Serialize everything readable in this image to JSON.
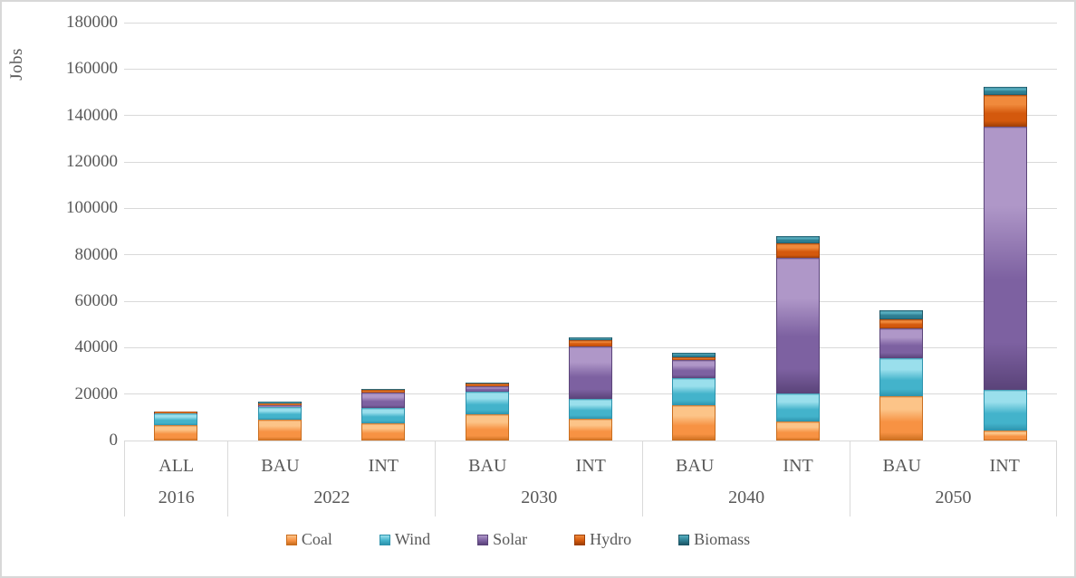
{
  "chart_data": {
    "type": "bar",
    "stacked": true,
    "ylabel": "Jobs",
    "ylim": [
      0,
      180000
    ],
    "ytick_step": 20000,
    "grid": true,
    "legend_position": "bottom",
    "axis_color": "#d9d9d9",
    "text_color": "#595959",
    "categories": [
      "ALL",
      "BAU",
      "INT",
      "BAU",
      "INT",
      "BAU",
      "INT",
      "BAU",
      "INT"
    ],
    "groups": [
      {
        "label": "2016",
        "span": 1
      },
      {
        "label": "2022",
        "span": 2
      },
      {
        "label": "2030",
        "span": 2
      },
      {
        "label": "2040",
        "span": 2
      },
      {
        "label": "2050",
        "span": 2
      }
    ],
    "series": [
      {
        "name": "Coal",
        "color": "#F79243",
        "color_light": "#FCC488",
        "color_dark": "#C96D1E",
        "values": [
          6800,
          8900,
          7400,
          11400,
          9300,
          15200,
          8300,
          19100,
          4200
        ]
      },
      {
        "name": "Wind",
        "color": "#43B3CB",
        "color_light": "#9ADFEC",
        "color_dark": "#2D93AD",
        "values": [
          4800,
          5600,
          6500,
          9700,
          8800,
          11700,
          12100,
          16200,
          17700
        ]
      },
      {
        "name": "Solar",
        "color": "#7D61A1",
        "color_light": "#AF97C8",
        "color_dark": "#5A4379",
        "values": [
          100,
          800,
          6800,
          2300,
          22500,
          7800,
          58300,
          13000,
          113200
        ]
      },
      {
        "name": "Hydro",
        "color": "#D4590D",
        "color_light": "#F08A3C",
        "color_dark": "#9E3F06",
        "values": [
          600,
          800,
          1000,
          1000,
          2700,
          1300,
          6100,
          3900,
          13600
        ]
      },
      {
        "name": "Biomass",
        "color": "#2D7E92",
        "color_light": "#57AFC0",
        "color_dark": "#1D5666",
        "values": [
          100,
          700,
          600,
          400,
          1200,
          1900,
          3100,
          3900,
          3500
        ]
      }
    ]
  }
}
